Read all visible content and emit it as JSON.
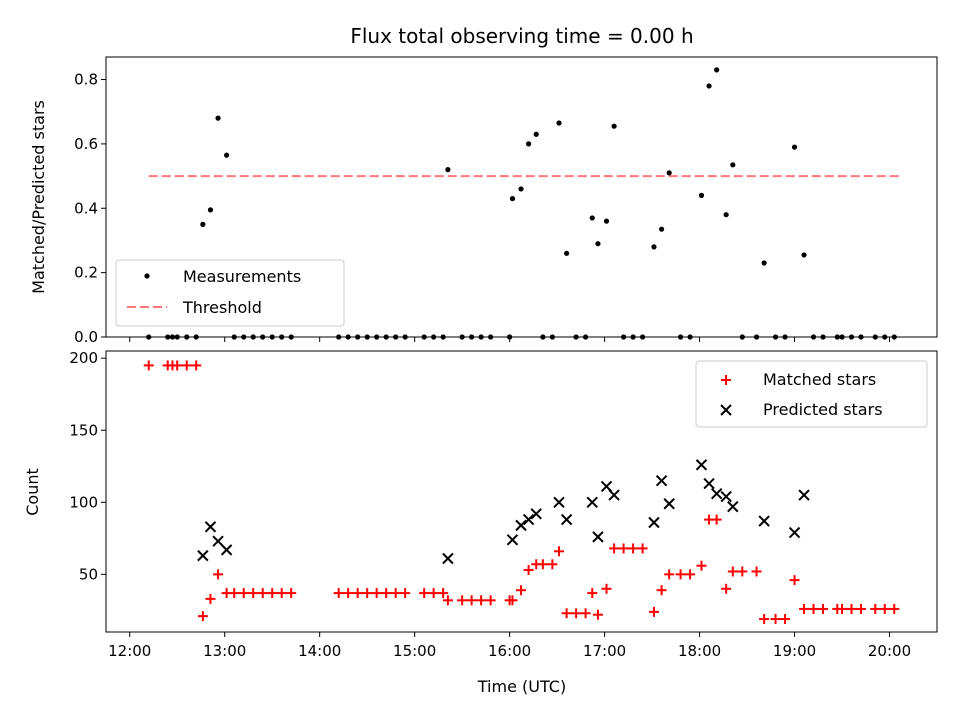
{
  "chart_data": [
    {
      "type": "scatter",
      "title": "Flux total observing time = 0.00 h",
      "xlabel": "",
      "ylabel": "Matched/Predicted stars",
      "x_unit": "hours (UTC)",
      "xlim": [
        11.75,
        20.5
      ],
      "ylim": [
        0,
        0.87
      ],
      "yticks": [
        0.0,
        0.2,
        0.4,
        0.6,
        0.8
      ],
      "ytick_labels": [
        "0.0",
        "0.2",
        "0.4",
        "0.6",
        "0.8"
      ],
      "legend": {
        "placement": "lower-left",
        "entries": [
          "Measurements",
          "Threshold"
        ]
      },
      "threshold": {
        "name": "Threshold",
        "value": 0.5,
        "x": [
          12.2,
          20.1
        ],
        "color": "#ff7777",
        "style": "dashed"
      },
      "series": [
        {
          "name": "Measurements",
          "color": "#000000",
          "marker": "dot",
          "points": [
            [
              12.2,
              0
            ],
            [
              12.4,
              0
            ],
            [
              12.45,
              0
            ],
            [
              12.5,
              0
            ],
            [
              12.6,
              0
            ],
            [
              12.7,
              0
            ],
            [
              12.77,
              0.35
            ],
            [
              12.85,
              0.395
            ],
            [
              12.93,
              0.68
            ],
            [
              13.02,
              0.565
            ],
            [
              13.1,
              0
            ],
            [
              13.2,
              0
            ],
            [
              13.3,
              0
            ],
            [
              13.4,
              0
            ],
            [
              13.5,
              0
            ],
            [
              13.6,
              0
            ],
            [
              13.7,
              0
            ],
            [
              14.2,
              0
            ],
            [
              14.3,
              0
            ],
            [
              14.4,
              0
            ],
            [
              14.5,
              0
            ],
            [
              14.6,
              0
            ],
            [
              14.7,
              0
            ],
            [
              14.8,
              0
            ],
            [
              14.9,
              0
            ],
            [
              15.1,
              0
            ],
            [
              15.2,
              0
            ],
            [
              15.3,
              0
            ],
            [
              15.35,
              0.52
            ],
            [
              15.5,
              0
            ],
            [
              15.6,
              0
            ],
            [
              15.7,
              0
            ],
            [
              15.8,
              0
            ],
            [
              16.0,
              0
            ],
            [
              16.03,
              0.43
            ],
            [
              16.12,
              0.46
            ],
            [
              16.2,
              0.6
            ],
            [
              16.28,
              0.63
            ],
            [
              16.35,
              0
            ],
            [
              16.45,
              0
            ],
            [
              16.52,
              0.665
            ],
            [
              16.6,
              0.26
            ],
            [
              16.7,
              0
            ],
            [
              16.8,
              0
            ],
            [
              16.87,
              0.37
            ],
            [
              16.93,
              0.29
            ],
            [
              17.02,
              0.36
            ],
            [
              17.1,
              0.655
            ],
            [
              17.2,
              0
            ],
            [
              17.3,
              0
            ],
            [
              17.4,
              0
            ],
            [
              17.52,
              0.28
            ],
            [
              17.6,
              0.335
            ],
            [
              17.68,
              0.51
            ],
            [
              17.8,
              0
            ],
            [
              17.9,
              0
            ],
            [
              18.02,
              0.44
            ],
            [
              18.1,
              0.78
            ],
            [
              18.18,
              0.83
            ],
            [
              18.28,
              0.38
            ],
            [
              18.35,
              0.535
            ],
            [
              18.45,
              0
            ],
            [
              18.6,
              0
            ],
            [
              18.68,
              0.23
            ],
            [
              18.8,
              0
            ],
            [
              18.9,
              0
            ],
            [
              19.0,
              0.59
            ],
            [
              19.1,
              0.255
            ],
            [
              19.2,
              0
            ],
            [
              19.3,
              0
            ],
            [
              19.45,
              0
            ],
            [
              19.5,
              0
            ],
            [
              19.6,
              0
            ],
            [
              19.7,
              0
            ],
            [
              19.85,
              0
            ],
            [
              19.95,
              0
            ],
            [
              20.05,
              0
            ]
          ]
        }
      ]
    },
    {
      "type": "scatter",
      "title": "",
      "xlabel": "Time (UTC)",
      "ylabel": "Count",
      "x_unit": "hours (UTC)",
      "xlim": [
        11.75,
        20.5
      ],
      "ylim": [
        10,
        205
      ],
      "xticks": [
        12,
        13,
        14,
        15,
        16,
        17,
        18,
        19,
        20
      ],
      "xtick_labels": [
        "12:00",
        "13:00",
        "14:00",
        "15:00",
        "16:00",
        "17:00",
        "18:00",
        "19:00",
        "20:00"
      ],
      "yticks": [
        50,
        100,
        150,
        200
      ],
      "ytick_labels": [
        "50",
        "100",
        "150",
        "200"
      ],
      "legend": {
        "placement": "upper-right",
        "entries": [
          "Matched stars",
          "Predicted stars"
        ]
      },
      "series": [
        {
          "name": "Matched stars",
          "color": "#ff0000",
          "marker": "plus",
          "points": [
            [
              12.2,
              195
            ],
            [
              12.4,
              195
            ],
            [
              12.45,
              195
            ],
            [
              12.5,
              195
            ],
            [
              12.6,
              195
            ],
            [
              12.7,
              195
            ],
            [
              12.77,
              21
            ],
            [
              12.85,
              33
            ],
            [
              12.93,
              50
            ],
            [
              13.02,
              37
            ],
            [
              13.1,
              37
            ],
            [
              13.2,
              37
            ],
            [
              13.3,
              37
            ],
            [
              13.4,
              37
            ],
            [
              13.5,
              37
            ],
            [
              13.6,
              37
            ],
            [
              13.7,
              37
            ],
            [
              14.2,
              37
            ],
            [
              14.3,
              37
            ],
            [
              14.4,
              37
            ],
            [
              14.5,
              37
            ],
            [
              14.6,
              37
            ],
            [
              14.7,
              37
            ],
            [
              14.8,
              37
            ],
            [
              14.9,
              37
            ],
            [
              15.1,
              37
            ],
            [
              15.2,
              37
            ],
            [
              15.3,
              37
            ],
            [
              15.35,
              32
            ],
            [
              15.5,
              32
            ],
            [
              15.6,
              32
            ],
            [
              15.7,
              32
            ],
            [
              15.8,
              32
            ],
            [
              16.0,
              32
            ],
            [
              16.03,
              32
            ],
            [
              16.12,
              39
            ],
            [
              16.2,
              53
            ],
            [
              16.28,
              57
            ],
            [
              16.35,
              57
            ],
            [
              16.45,
              57
            ],
            [
              16.52,
              66
            ],
            [
              16.6,
              23
            ],
            [
              16.7,
              23
            ],
            [
              16.8,
              23
            ],
            [
              16.87,
              37
            ],
            [
              16.93,
              22
            ],
            [
              17.02,
              40
            ],
            [
              17.1,
              68
            ],
            [
              17.2,
              68
            ],
            [
              17.3,
              68
            ],
            [
              17.4,
              68
            ],
            [
              17.52,
              24
            ],
            [
              17.6,
              39
            ],
            [
              17.68,
              50
            ],
            [
              17.8,
              50
            ],
            [
              17.9,
              50
            ],
            [
              18.02,
              56
            ],
            [
              18.1,
              88
            ],
            [
              18.18,
              88
            ],
            [
              18.28,
              40
            ],
            [
              18.35,
              52
            ],
            [
              18.45,
              52
            ],
            [
              18.6,
              52
            ],
            [
              18.68,
              19
            ],
            [
              18.8,
              19
            ],
            [
              18.9,
              19
            ],
            [
              19.0,
              46
            ],
            [
              19.1,
              26
            ],
            [
              19.2,
              26
            ],
            [
              19.3,
              26
            ],
            [
              19.45,
              26
            ],
            [
              19.5,
              26
            ],
            [
              19.6,
              26
            ],
            [
              19.7,
              26
            ],
            [
              19.85,
              26
            ],
            [
              19.95,
              26
            ],
            [
              20.05,
              26
            ]
          ]
        },
        {
          "name": "Predicted stars",
          "color": "#000000",
          "marker": "x",
          "points": [
            [
              12.77,
              63
            ],
            [
              12.85,
              83
            ],
            [
              12.93,
              73
            ],
            [
              13.02,
              67
            ],
            [
              15.35,
              61
            ],
            [
              16.03,
              74
            ],
            [
              16.12,
              84
            ],
            [
              16.2,
              88
            ],
            [
              16.28,
              92
            ],
            [
              16.52,
              100
            ],
            [
              16.6,
              88
            ],
            [
              16.87,
              100
            ],
            [
              16.93,
              76
            ],
            [
              17.02,
              111
            ],
            [
              17.1,
              105
            ],
            [
              17.52,
              86
            ],
            [
              17.6,
              115
            ],
            [
              17.68,
              99
            ],
            [
              18.02,
              126
            ],
            [
              18.1,
              113
            ],
            [
              18.18,
              106
            ],
            [
              18.28,
              104
            ],
            [
              18.35,
              97
            ],
            [
              18.68,
              87
            ],
            [
              19.0,
              79
            ],
            [
              19.1,
              105
            ]
          ]
        }
      ]
    }
  ]
}
